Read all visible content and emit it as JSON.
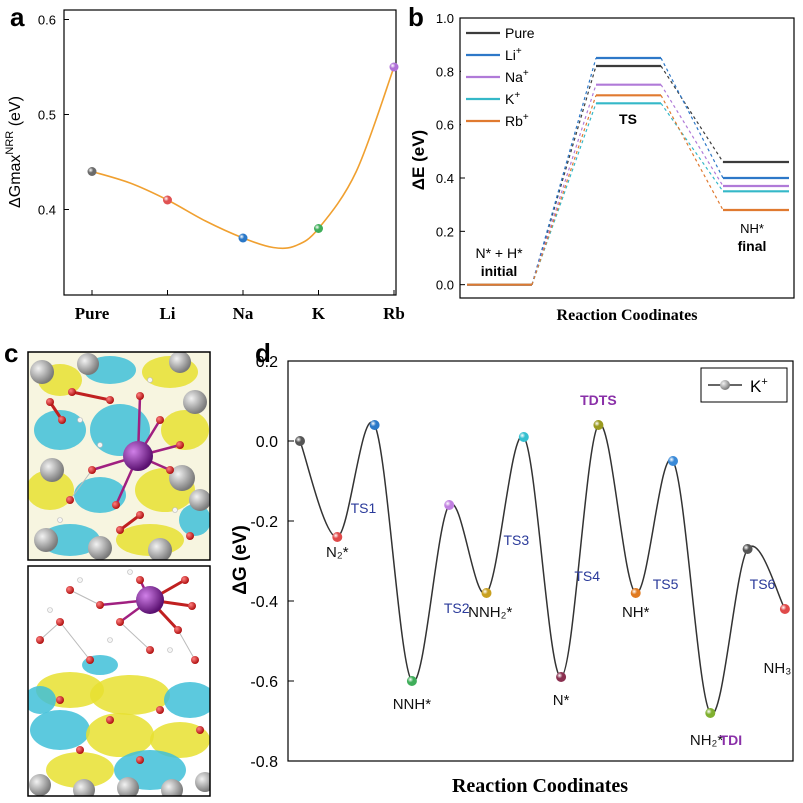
{
  "panel_labels": {
    "a": "a",
    "b": "b",
    "c": "c",
    "d": "d"
  },
  "chart_data": [
    {
      "panel": "a",
      "type": "line",
      "title": "",
      "ylabel_prefix": "ΔGmax",
      "ylabel_sup": "NRR",
      "ylabel_suffix": " (eV)",
      "xlabel": "",
      "categories": [
        "Pure",
        "Li",
        "Na",
        "K",
        "Rb"
      ],
      "values": [
        0.44,
        0.41,
        0.37,
        0.38,
        0.55
      ],
      "point_colors": [
        "#6b6b6b",
        "#e05252",
        "#2a78c8",
        "#3fae5a",
        "#b070d8"
      ],
      "line_color": "#f0a030",
      "ylim": [
        0.31,
        0.61
      ],
      "yticks": [
        0.4,
        0.5,
        0.6
      ],
      "ytick_labels": [
        "0.4",
        "0.5",
        "0.6"
      ],
      "curve_x": [
        0,
        0.5,
        1,
        1.5,
        2,
        2.4,
        2.7,
        3,
        3.5,
        4
      ],
      "curve_y": [
        0.44,
        0.428,
        0.41,
        0.388,
        0.37,
        0.36,
        0.362,
        0.38,
        0.44,
        0.55
      ]
    },
    {
      "panel": "b",
      "type": "line",
      "title": "",
      "ylabel": "ΔE (eV)",
      "xlabel": "Reaction Coodinates",
      "ylim": [
        -0.05,
        1.0
      ],
      "yticks": [
        0.0,
        0.2,
        0.4,
        0.6,
        0.8,
        1.0
      ],
      "ytick_labels": [
        "0.0",
        "0.2",
        "0.4",
        "0.6",
        "0.8",
        "1.0"
      ],
      "states": [
        "initial",
        "TS",
        "final"
      ],
      "series": [
        {
          "name": "Pure",
          "sup": "",
          "color": "#3c3c3c",
          "values": [
            0.0,
            0.82,
            0.46
          ]
        },
        {
          "name": "Li",
          "sup": "+",
          "color": "#2d78c8",
          "values": [
            0.0,
            0.85,
            0.4
          ]
        },
        {
          "name": "Na",
          "sup": "+",
          "color": "#b07ad8",
          "values": [
            0.0,
            0.75,
            0.37
          ]
        },
        {
          "name": "K",
          "sup": "+",
          "color": "#35b8c8",
          "values": [
            0.0,
            0.68,
            0.35
          ]
        },
        {
          "name": "Rb",
          "sup": "+",
          "color": "#e07a30",
          "values": [
            0.0,
            0.71,
            0.28
          ]
        }
      ],
      "annotations": {
        "initial_top": "N* + H*",
        "initial_bottom": "initial",
        "ts": "TS",
        "final_top": "NH*",
        "final_bottom": "final"
      }
    },
    {
      "panel": "d",
      "type": "line",
      "title": "",
      "ylabel": "ΔG (eV)",
      "xlabel": "Reaction Coodinates",
      "ylim": [
        -0.8,
        0.2
      ],
      "yticks": [
        0.2,
        0.0,
        -0.2,
        -0.4,
        -0.6,
        -0.8
      ],
      "ytick_labels": [
        "0.2",
        "0.0",
        "-0.2",
        "-0.4",
        "-0.6",
        "-0.8"
      ],
      "legend": {
        "name": "K",
        "sup": "+",
        "position": "top-right"
      },
      "line_color": "#333333",
      "points": [
        {
          "x": 0,
          "y": 0.0,
          "color": "#555555"
        },
        {
          "x": 1,
          "y": -0.24,
          "color": "#e04a4a"
        },
        {
          "x": 2,
          "y": 0.04,
          "color": "#2a78c8"
        },
        {
          "x": 3,
          "y": -0.6,
          "color": "#3fae5a"
        },
        {
          "x": 4,
          "y": -0.16,
          "color": "#c080e0"
        },
        {
          "x": 5,
          "y": -0.38,
          "color": "#c8a020"
        },
        {
          "x": 6,
          "y": 0.01,
          "color": "#35c0d0"
        },
        {
          "x": 7,
          "y": -0.59,
          "color": "#8a3050"
        },
        {
          "x": 8,
          "y": 0.04,
          "color": "#9a9a20"
        },
        {
          "x": 9,
          "y": -0.38,
          "color": "#e07a20"
        },
        {
          "x": 10,
          "y": -0.05,
          "color": "#3a8ad8"
        },
        {
          "x": 11,
          "y": -0.68,
          "color": "#80b030"
        },
        {
          "x": 12,
          "y": -0.27,
          "color": "#555555"
        },
        {
          "x": 13,
          "y": -0.42,
          "color": "#e04a4a"
        }
      ],
      "labels": [
        {
          "text": "N₂*",
          "x": 1,
          "y": -0.29,
          "kind": "state"
        },
        {
          "text": "TS1",
          "x": 1.7,
          "y": -0.18,
          "kind": "ts"
        },
        {
          "text": "NNH*",
          "x": 3,
          "y": -0.67,
          "kind": "state"
        },
        {
          "text": "TS2",
          "x": 4.2,
          "y": -0.43,
          "kind": "ts"
        },
        {
          "text": "NNH₂*",
          "x": 5.1,
          "y": -0.44,
          "kind": "state"
        },
        {
          "text": "TS3",
          "x": 5.8,
          "y": -0.26,
          "kind": "ts"
        },
        {
          "text": "N*",
          "x": 7,
          "y": -0.66,
          "kind": "state"
        },
        {
          "text": "TS4",
          "x": 7.7,
          "y": -0.35,
          "kind": "ts"
        },
        {
          "text": "TDTS",
          "x": 8,
          "y": 0.09,
          "kind": "highlight"
        },
        {
          "text": "NH*",
          "x": 9,
          "y": -0.44,
          "kind": "state"
        },
        {
          "text": "TS5",
          "x": 9.8,
          "y": -0.37,
          "kind": "ts"
        },
        {
          "text": "NH₂*",
          "x": 10.9,
          "y": -0.76,
          "kind": "state"
        },
        {
          "text": "TDI",
          "x": 11.55,
          "y": -0.76,
          "kind": "highlight"
        },
        {
          "text": "TS6",
          "x": 12.4,
          "y": -0.37,
          "kind": "ts"
        },
        {
          "text": "NH₃",
          "x": 12.8,
          "y": -0.58,
          "kind": "state"
        }
      ]
    }
  ],
  "colors": {
    "isosurface_yellow": "#e8e030",
    "isosurface_cyan": "#40c0d8",
    "atom_metal": "#8a2aa0",
    "atom_oxygen": "#d82020",
    "atom_gray": "#9a9a9a",
    "highlight": "#8a30a8",
    "ts_text": "#2a3a9a"
  }
}
